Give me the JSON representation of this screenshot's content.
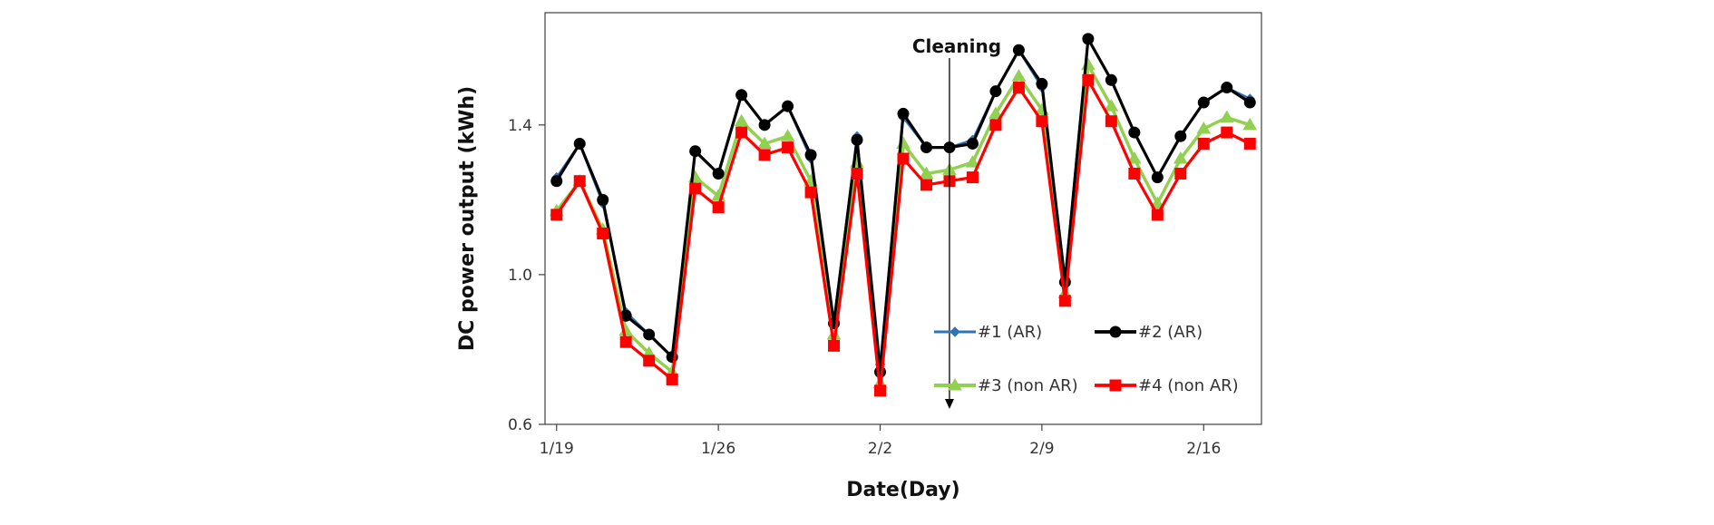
{
  "chart_data": {
    "type": "line",
    "xlabel": "Date(Day)",
    "ylabel": "DC power output  (kWh)",
    "x_ticks": [
      "1/19",
      "1/26",
      "2/2",
      "2/9",
      "2/16"
    ],
    "x_tick_days": [
      1,
      8,
      15,
      22,
      29
    ],
    "y_ticks": [
      "0.6",
      "1.0",
      "1.4"
    ],
    "y_tick_values": [
      0.6,
      1.0,
      1.4
    ],
    "ylim": [
      0.6,
      1.7
    ],
    "xlim": [
      0.5,
      31.5
    ],
    "grid": false,
    "legend_position": "bottom-right, inside plot",
    "x_days": [
      1,
      2,
      3,
      4,
      5,
      6,
      7,
      8,
      9,
      10,
      11,
      12,
      13,
      14,
      15,
      16,
      17,
      18,
      19,
      20,
      21,
      22,
      23,
      24,
      25,
      26,
      27,
      28,
      29,
      30,
      31
    ],
    "series": [
      {
        "name": "#1 (AR)",
        "color": "#2e75b6",
        "marker": "diamond",
        "values": [
          1.26,
          1.35,
          1.19,
          0.9,
          0.84,
          0.78,
          1.33,
          1.27,
          1.48,
          1.4,
          1.45,
          1.31,
          0.87,
          1.37,
          0.76,
          1.42,
          1.34,
          1.34,
          1.36,
          1.49,
          1.6,
          1.5,
          0.99,
          1.63,
          1.52,
          1.38,
          1.26,
          1.37,
          1.46,
          1.5,
          1.47
        ]
      },
      {
        "name": "#2 (AR)",
        "color": "#000000",
        "marker": "circle",
        "values": [
          1.25,
          1.35,
          1.2,
          0.89,
          0.84,
          0.78,
          1.33,
          1.27,
          1.48,
          1.4,
          1.45,
          1.32,
          0.87,
          1.36,
          0.74,
          1.43,
          1.34,
          1.34,
          1.35,
          1.49,
          1.6,
          1.51,
          0.98,
          1.63,
          1.52,
          1.38,
          1.26,
          1.37,
          1.46,
          1.5,
          1.46
        ]
      },
      {
        "name": "#3 (non AR)",
        "color": "#92d050",
        "marker": "triangle",
        "values": [
          1.17,
          1.25,
          1.12,
          0.85,
          0.79,
          0.74,
          1.26,
          1.21,
          1.41,
          1.35,
          1.37,
          1.25,
          0.84,
          1.3,
          0.71,
          1.35,
          1.27,
          1.28,
          1.3,
          1.43,
          1.53,
          1.44,
          0.95,
          1.56,
          1.45,
          1.31,
          1.19,
          1.31,
          1.39,
          1.42,
          1.4
        ]
      },
      {
        "name": "#4 (non AR)",
        "color": "#ff0000",
        "marker": "square",
        "values": [
          1.16,
          1.25,
          1.11,
          0.82,
          0.77,
          0.72,
          1.23,
          1.18,
          1.38,
          1.32,
          1.34,
          1.22,
          0.81,
          1.27,
          0.69,
          1.31,
          1.24,
          1.25,
          1.26,
          1.4,
          1.5,
          1.41,
          0.93,
          1.52,
          1.41,
          1.27,
          1.16,
          1.27,
          1.35,
          1.38,
          1.35
        ]
      }
    ],
    "annotation": {
      "text": "Cleaning",
      "x_day": 18,
      "arrow": "down"
    }
  }
}
